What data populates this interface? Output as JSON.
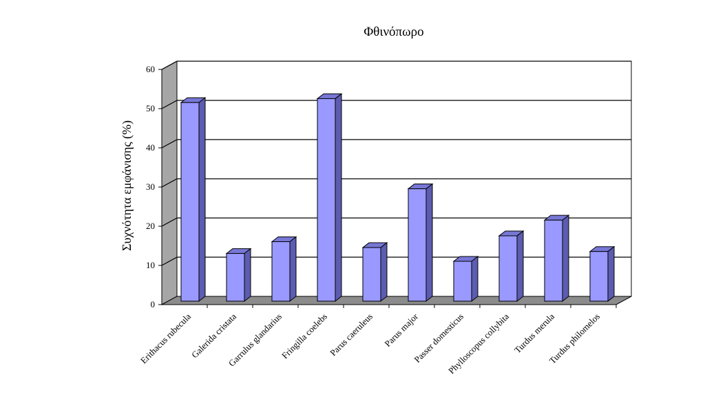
{
  "chart_data": {
    "type": "bar",
    "title": "Φθινόπωρο",
    "xlabel": "",
    "ylabel": "Συχνότητα εμφάνισης (%)",
    "ylim": [
      0,
      60
    ],
    "yticks": [
      0,
      10,
      20,
      30,
      40,
      50,
      60
    ],
    "grid": true,
    "categories": [
      "Erithacus rubecula",
      "Galerida cristata",
      "Garrulus glandarius",
      "Fringilla coelebs",
      "Parus caeruleus",
      "Parus major",
      "Passer domesticus",
      "Phylloscopus collybita",
      "Turdus merula",
      "Turdus philomelos"
    ],
    "values": [
      50.5,
      12,
      15,
      51.5,
      13.5,
      28.5,
      10,
      16.5,
      20.5,
      12.5
    ],
    "colors": {
      "bar_front": "#9999ff",
      "bar_side": "#5c5cb0",
      "bar_top": "#7777d6",
      "back_wall": "#ffffff",
      "side_wall": "#a6a6a6",
      "floor": "#8c8c8c"
    }
  }
}
